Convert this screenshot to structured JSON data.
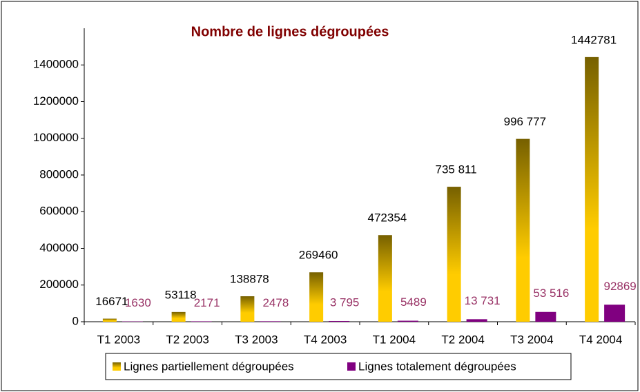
{
  "chart_data": {
    "type": "bar",
    "title": "Nombre de lignes dégroupées",
    "categories": [
      "T1 2003",
      "T2 2003",
      "T3 2003",
      "T4 2003",
      "T1 2004",
      "T2 2004",
      "T3 2004",
      "T4 2004"
    ],
    "series": [
      {
        "name": "Lignes partiellement dégroupées",
        "color": "#ffcc00",
        "values": [
          16671,
          53118,
          138878,
          269460,
          472354,
          735811,
          996777,
          1442781
        ],
        "value_labels": [
          "16671",
          "53118",
          "138878",
          "269460",
          "472354",
          "735 811",
          "996 777",
          "1442781"
        ]
      },
      {
        "name": "Lignes totalement dégroupées",
        "color": "#800080",
        "values": [
          1630,
          2171,
          2478,
          3795,
          5489,
          13731,
          53516,
          92869
        ],
        "value_labels": [
          "1630",
          "2171",
          "2478",
          "3 795",
          "5489",
          "13 731",
          "53 516",
          "92869"
        ]
      }
    ],
    "ylim": [
      0,
      1600000
    ],
    "yticks": [
      0,
      200000,
      400000,
      600000,
      800000,
      1000000,
      1200000,
      1400000
    ]
  }
}
